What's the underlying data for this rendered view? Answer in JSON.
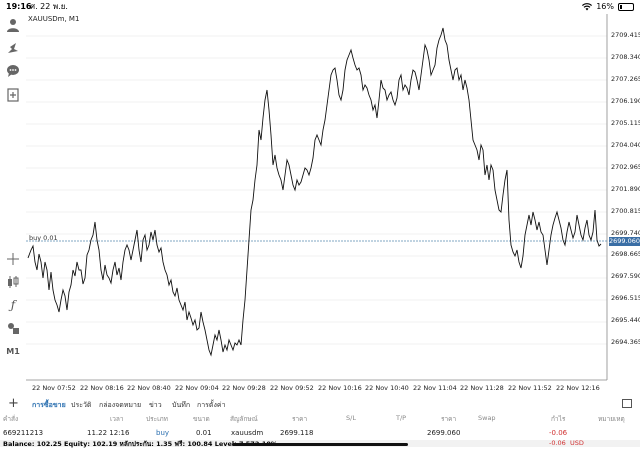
{
  "status_bar": {
    "time": "19:16",
    "date": "ศ. 22 พ.ย.",
    "battery": "16%"
  },
  "chart": {
    "symbol_label": "XAUUSDm, M1",
    "buy_label": "buy 0.01",
    "current_price": "2699.060",
    "price_labels": [
      "2709.415",
      "2708.340",
      "2707.265",
      "2706.190",
      "2705.115",
      "2704.040",
      "2702.965",
      "2701.890",
      "2700.815",
      "2699.740",
      "2698.665",
      "2697.590",
      "2696.515",
      "2695.440",
      "2694.365"
    ],
    "time_labels": [
      "22 Nov 07:52",
      "22 Nov 08:16",
      "22 Nov 08:40",
      "22 Nov 09:04",
      "22 Nov 09:28",
      "22 Nov 09:52",
      "22 Nov 10:16",
      "22 Nov 10:40",
      "22 Nov 11:04",
      "22 Nov 11:28",
      "22 Nov 11:52",
      "22 Nov 12:16"
    ],
    "colors": {
      "line": "#111111",
      "grid": "#e6e6e6",
      "buy_line": "#5a8ab0",
      "price_tag": "#3a6ea5"
    }
  },
  "left_toolbar": [
    "person-icon",
    "trade-icon",
    "chat-icon",
    "add-chart-icon",
    "crosshair-icon",
    "candles-icon",
    "function-icon",
    "objects-icon",
    "timeframe-label"
  ],
  "timeframe": "M1",
  "bottom_tabs": [
    "การซื้อขาย",
    "ประวัติ",
    "กล่องจดหมาย",
    "ข่าว",
    "บันทึก",
    "การตั้งค่า"
  ],
  "table": {
    "headers": [
      "คำสั่ง",
      "เวลา",
      "ประเภท",
      "ขนาด",
      "สัญลักษณ์",
      "ราคา",
      "S/L",
      "T/P",
      "ราคา",
      "Swap",
      "กำไร",
      "หมายเหตุ"
    ],
    "row": {
      "order": "669211213",
      "time": "11.22 12:16",
      "type": "buy",
      "size": "0.01",
      "symbol": "xauusdm",
      "open_price": "2699.118",
      "price": "2699.060",
      "profit": "-0.06"
    },
    "balance": "Balance: 102.25 Equity: 102.19 หลักประกัน: 1.35 ฟรี: 100.84 Level: 7 572.10%",
    "total_profit": "-0.06",
    "currency": "USD"
  }
}
